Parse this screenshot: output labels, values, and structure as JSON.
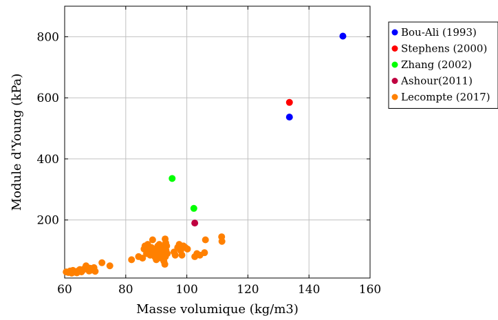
{
  "chart_data": {
    "type": "scatter",
    "xlabel": "Masse volumique (kg/m3)",
    "ylabel": "Module d'Young (kPa)",
    "xlim": [
      60,
      160
    ],
    "ylim": [
      10,
      900
    ],
    "xticks": [
      60,
      80,
      100,
      120,
      140,
      160
    ],
    "yticks": [
      200,
      400,
      600,
      800
    ],
    "grid": true,
    "legend_position": "outside-right-top",
    "series": [
      {
        "name": "Bou-Ali (1993)",
        "color": "#0000ff",
        "points": [
          [
            151.1,
            802
          ],
          [
            133.6,
            537
          ]
        ]
      },
      {
        "name": "Stephens (2000)",
        "color": "#ff0000",
        "points": [
          [
            133.6,
            585
          ]
        ]
      },
      {
        "name": "Zhang (2002)",
        "color": "#00ff00",
        "points": [
          [
            95.2,
            336
          ],
          [
            102.3,
            238
          ]
        ]
      },
      {
        "name": "Ashour(2011)",
        "color": "#bf0040",
        "points": [
          [
            102.6,
            190
          ]
        ]
      },
      {
        "name": "Lecompte (2017)",
        "color": "#ff8000",
        "points": [
          [
            60.5,
            30
          ],
          [
            61.2,
            28
          ],
          [
            61.8,
            33
          ],
          [
            62.3,
            26
          ],
          [
            62.7,
            35
          ],
          [
            63.0,
            29
          ],
          [
            63.5,
            31
          ],
          [
            64.0,
            27
          ],
          [
            64.5,
            34
          ],
          [
            65.0,
            38
          ],
          [
            65.5,
            30
          ],
          [
            66.0,
            36
          ],
          [
            66.5,
            41
          ],
          [
            67.0,
            50
          ],
          [
            67.3,
            45
          ],
          [
            67.6,
            38
          ],
          [
            68.0,
            33
          ],
          [
            68.3,
            42
          ],
          [
            68.8,
            36
          ],
          [
            69.2,
            40
          ],
          [
            69.6,
            44
          ],
          [
            70.0,
            32
          ],
          [
            72.2,
            60
          ],
          [
            74.8,
            50
          ],
          [
            81.9,
            70
          ],
          [
            84.2,
            80
          ],
          [
            85.5,
            75
          ],
          [
            86.0,
            105
          ],
          [
            86.3,
            115
          ],
          [
            86.8,
            90
          ],
          [
            87.2,
            120
          ],
          [
            87.6,
            100
          ],
          [
            88.0,
            85
          ],
          [
            88.4,
            110
          ],
          [
            88.8,
            135
          ],
          [
            89.2,
            95
          ],
          [
            89.5,
            80
          ],
          [
            89.8,
            105
          ],
          [
            90.0,
            70
          ],
          [
            90.2,
            90
          ],
          [
            90.5,
            115
          ],
          [
            90.8,
            100
          ],
          [
            91.0,
            120
          ],
          [
            91.3,
            85
          ],
          [
            91.6,
            75
          ],
          [
            91.9,
            95
          ],
          [
            92.2,
            110
          ],
          [
            92.5,
            65
          ],
          [
            92.8,
            55
          ],
          [
            93.0,
            80
          ],
          [
            93.2,
            100
          ],
          [
            93.4,
            115
          ],
          [
            93.6,
            90
          ],
          [
            92.9,
            138
          ],
          [
            93.1,
            125
          ],
          [
            95.8,
            95
          ],
          [
            96.2,
            85
          ],
          [
            97.0,
            110
          ],
          [
            97.5,
            120
          ],
          [
            98.0,
            100
          ],
          [
            98.4,
            85
          ],
          [
            98.9,
            115
          ],
          [
            99.5,
            110
          ],
          [
            100.2,
            105
          ],
          [
            102.6,
            80
          ],
          [
            103.3,
            90
          ],
          [
            104.3,
            85
          ],
          [
            105.8,
            93
          ],
          [
            106.1,
            135
          ],
          [
            111.4,
            145
          ],
          [
            111.5,
            130
          ]
        ]
      }
    ]
  }
}
